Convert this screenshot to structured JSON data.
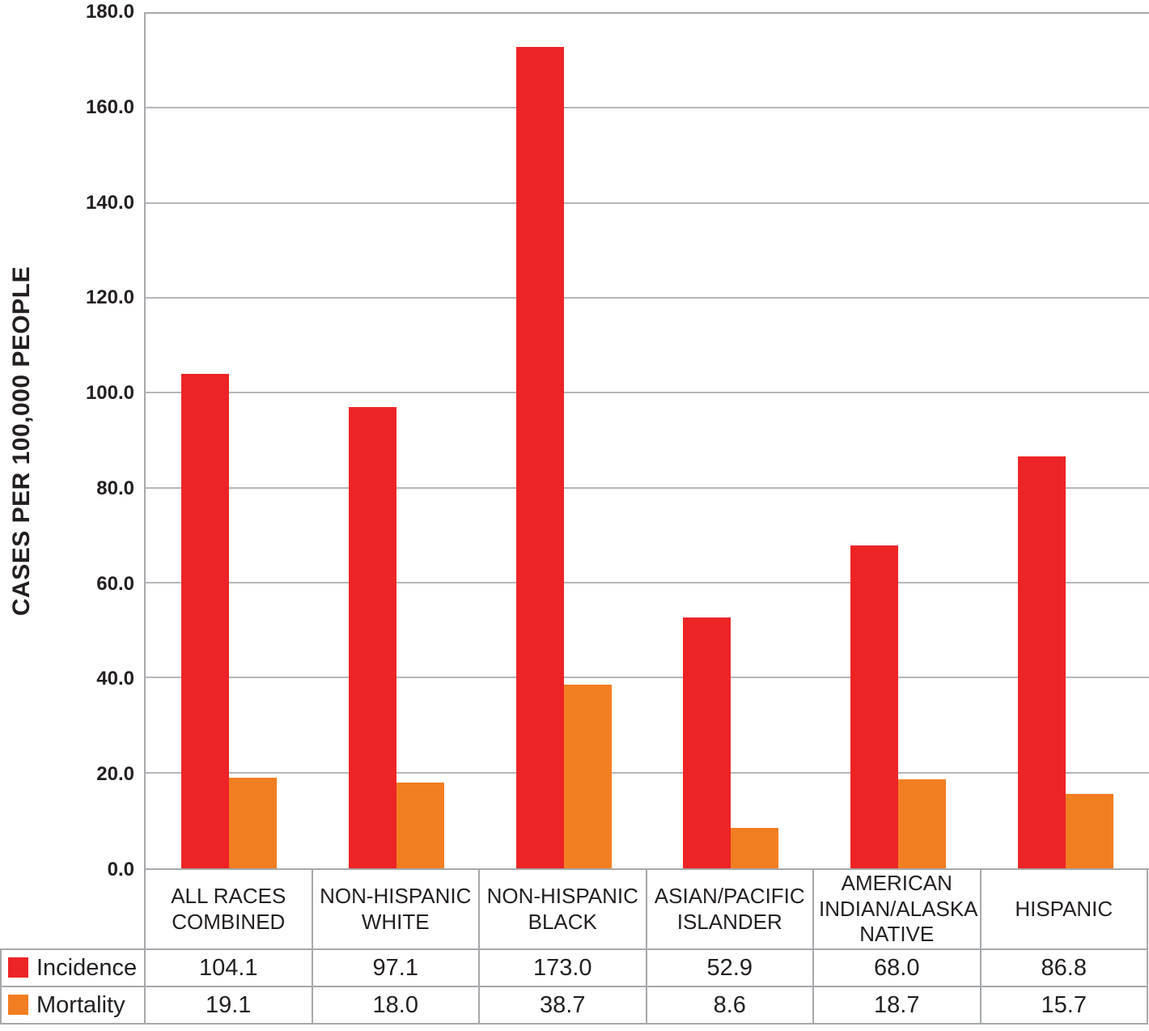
{
  "chart_data": {
    "type": "bar",
    "title": "",
    "ylabel": "CASES PER 100,000 PEOPLE",
    "xlabel": "",
    "ylim": [
      0,
      180
    ],
    "ytick_step": 20,
    "ytick_decimals": 1,
    "grid": "horizontal",
    "legend_position": "left-of-data-table",
    "categories": [
      "ALL RACES COMBINED",
      "NON-HISPANIC WHITE",
      "NON-HISPANIC BLACK",
      "ASIAN/PACIFIC ISLANDER",
      "AMERICAN INDIAN/ALASKA NATIVE",
      "HISPANIC"
    ],
    "series": [
      {
        "name": "Incidence",
        "color": "#ed2426",
        "values": [
          104.1,
          97.1,
          173.0,
          52.9,
          68.0,
          86.8
        ]
      },
      {
        "name": "Mortality",
        "color": "#f27e22",
        "values": [
          19.1,
          18.0,
          38.7,
          8.6,
          18.7,
          15.7
        ]
      }
    ]
  },
  "colors": {
    "incidence": "#ed2426",
    "mortality": "#f27e22",
    "gridline": "#b5b7ba",
    "axis_border": "#a6a8ab",
    "text": "#231f20",
    "background": "#ffffff"
  }
}
